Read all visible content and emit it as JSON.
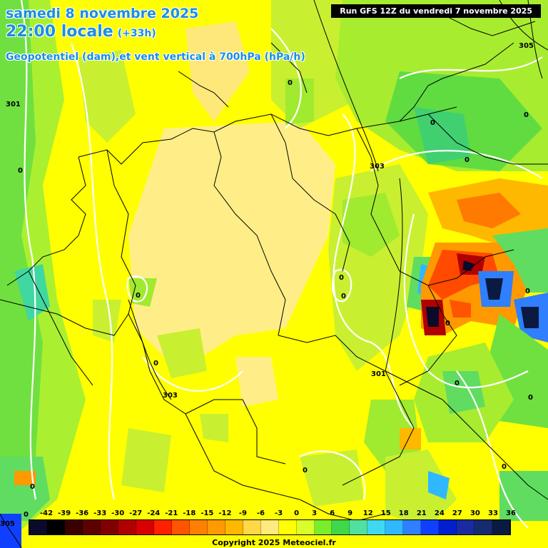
{
  "header": {
    "date": "samedi 8 novembre 2025",
    "time": "22:00 locale",
    "offset": "(+33h)",
    "parameter": "Geopotentiel (dam),et vent vertical à 700hPa (hPa/h)",
    "run": "Run GFS 12Z du vendredi 7 novembre 2025"
  },
  "contour_labels": {
    "geopotential": [
      "305",
      "303",
      "301",
      "301",
      "303",
      "305"
    ],
    "vertical_wind": [
      "0",
      "0",
      "0",
      "0",
      "0",
      "0",
      "0",
      "0",
      "0",
      "0",
      "0",
      "0",
      "0",
      "0",
      "0",
      "0",
      "0"
    ]
  },
  "legend": {
    "ticks": [
      "-42",
      "-39",
      "-36",
      "-33",
      "-30",
      "-27",
      "-24",
      "-21",
      "-18",
      "-15",
      "-12",
      "-9",
      "-6",
      "-3",
      "0",
      "3",
      "6",
      "9",
      "12",
      "15",
      "18",
      "21",
      "24",
      "27",
      "30",
      "33",
      "36"
    ],
    "colors": [
      "#0a0a2a",
      "#000000",
      "#3a0000",
      "#5c0000",
      "#800000",
      "#b00000",
      "#d80000",
      "#ff2000",
      "#ff5500",
      "#ff8000",
      "#ff9900",
      "#ffb800",
      "#ffd84a",
      "#ffea80",
      "#ffff00",
      "#d8ff2a",
      "#7aee2a",
      "#40d84a",
      "#50e0a0",
      "#40d8f0",
      "#2fb8ff",
      "#2f7fff",
      "#1040ff",
      "#0020d0",
      "#1a2aa0",
      "#162a70",
      "#0a1a40"
    ]
  },
  "copyright": "Copyright 2025 Meteociel.fr"
}
